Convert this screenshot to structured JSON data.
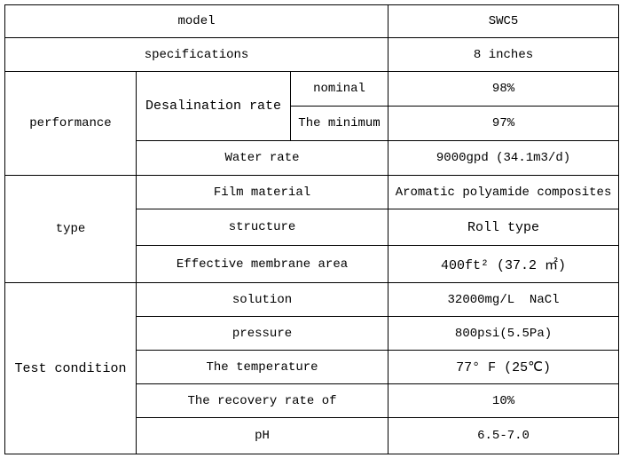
{
  "table": {
    "rows": [
      [
        "model",
        "SWC5"
      ],
      [
        "specifications",
        "8 inches"
      ],
      [
        "performance",
        "Desalination rate",
        "nominal",
        "98%"
      ],
      [
        "The minimum",
        "97%"
      ],
      [
        "Water rate",
        "9000gpd (34.1m3/d)"
      ],
      [
        "type",
        "Film material",
        "Aromatic polyamide composites"
      ],
      [
        "structure",
        "Roll type"
      ],
      [
        "Effective membrane area",
        "400ft² (37.2 ㎡)"
      ],
      [
        "Test condition",
        "solution",
        "32000mg/L  NaCl"
      ],
      [
        "pressure",
        "800psi(5.5Pa)"
      ],
      [
        "The temperature",
        "77° F (25℃)"
      ],
      [
        "The recovery rate of",
        "10%"
      ],
      [
        "pH",
        "6.5-7.0"
      ]
    ]
  }
}
